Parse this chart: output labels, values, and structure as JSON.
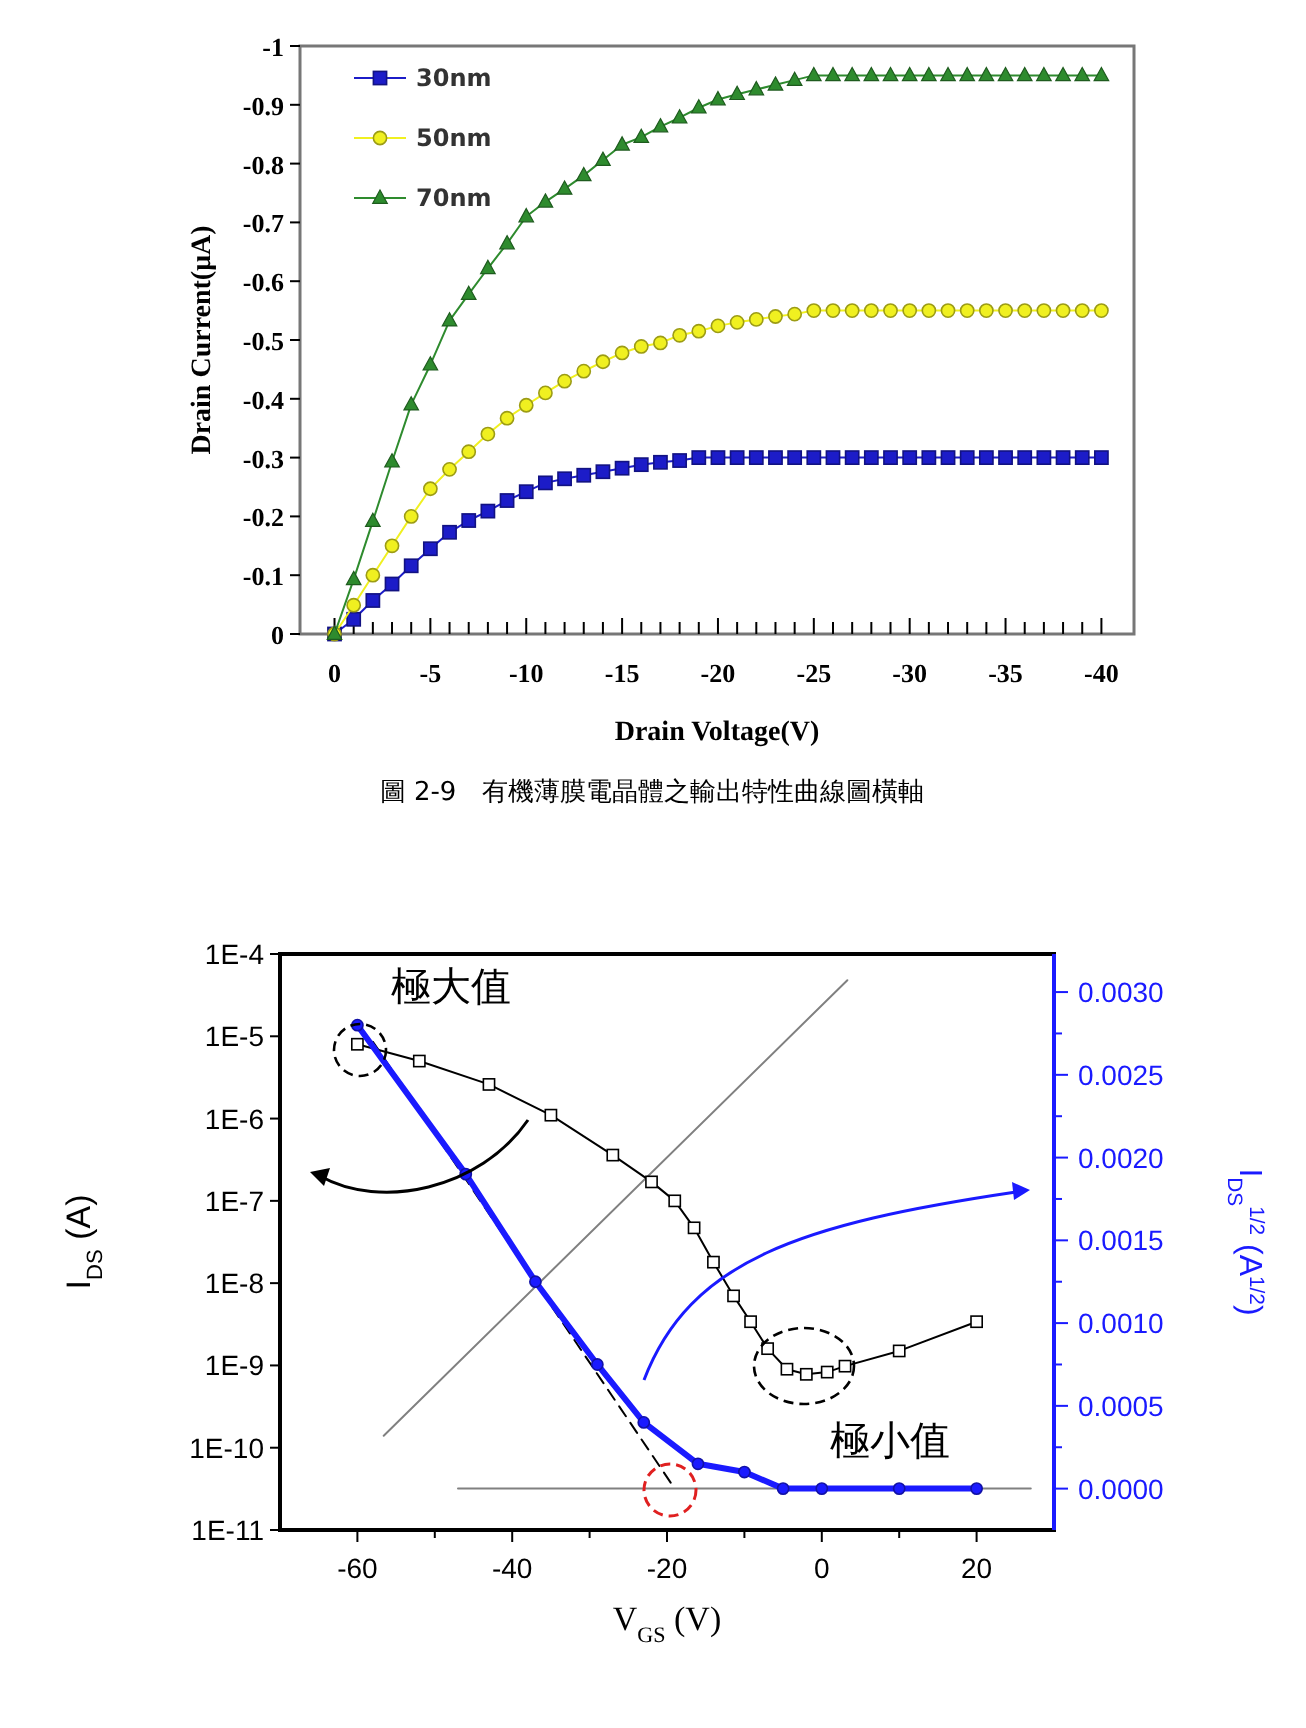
{
  "chart_data": [
    {
      "type": "line",
      "xlabel": "Drain Voltage(V)",
      "ylabel": "Drain Current(μA)",
      "legend": "top left",
      "annotations": [
        "圖 2-9　有機薄膜電晶體之輸出特性曲線圖橫軸"
      ],
      "x": [
        0,
        -1,
        -2,
        -3,
        -4,
        -5,
        -6,
        -7,
        -8,
        -9,
        -10,
        -11,
        -12,
        -13,
        -14,
        -15,
        -16,
        -17,
        -18,
        -19,
        -20,
        -21,
        -22,
        -23,
        -24,
        -25,
        -26,
        -27,
        -28,
        -29,
        -30,
        -31,
        -32,
        -33,
        -34,
        -35,
        -36,
        -37,
        -38,
        -39,
        -40
      ],
      "xlim": [
        1.8,
        -41.7
      ],
      "ylim": [
        0,
        -1
      ],
      "xticks": [
        0,
        {
          "value": -1,
          "label": null
        },
        {
          "value": -2,
          "label": null
        },
        {
          "value": -3,
          "label": null
        },
        {
          "value": -4,
          "label": null
        },
        -5,
        {
          "value": -6,
          "label": null
        },
        {
          "value": -7,
          "label": null
        },
        {
          "value": -8,
          "label": null
        },
        {
          "value": -9,
          "label": null
        },
        -10,
        {
          "value": -11,
          "label": null
        },
        {
          "value": -12,
          "label": null
        },
        {
          "value": -13,
          "label": null
        },
        {
          "value": -14,
          "label": null
        },
        -15,
        {
          "value": -16,
          "label": null
        },
        {
          "value": -17,
          "label": null
        },
        {
          "value": -18,
          "label": null
        },
        {
          "value": -19,
          "label": null
        },
        -20,
        {
          "value": -21,
          "label": null
        },
        {
          "value": -22,
          "label": null
        },
        {
          "value": -23,
          "label": null
        },
        {
          "value": -24,
          "label": null
        },
        -25,
        {
          "value": -26,
          "label": null
        },
        {
          "value": -27,
          "label": null
        },
        {
          "value": -28,
          "label": null
        },
        {
          "value": -29,
          "label": null
        },
        -30,
        {
          "value": -31,
          "label": null
        },
        {
          "value": -32,
          "label": null
        },
        {
          "value": -33,
          "label": null
        },
        {
          "value": -34,
          "label": null
        },
        -35,
        {
          "value": -36,
          "label": null
        },
        {
          "value": -37,
          "label": null
        },
        {
          "value": -38,
          "label": null
        },
        {
          "value": -39,
          "label": null
        },
        -40
      ],
      "yticks": [
        0,
        -0.1,
        -0.2,
        -0.3,
        -0.4,
        -0.5,
        -0.6,
        -0.7,
        -0.8,
        -0.9,
        -1
      ],
      "series": [
        {
          "name": "30nm",
          "color": "#1c1cc8",
          "marker": "square",
          "values": [
            0,
            -0.025,
            -0.057,
            -0.085,
            -0.116,
            -0.145,
            -0.173,
            -0.193,
            -0.209,
            -0.227,
            -0.242,
            -0.257,
            -0.264,
            -0.27,
            -0.276,
            -0.282,
            -0.288,
            -0.292,
            -0.295,
            -0.3,
            -0.3,
            -0.3,
            -0.3,
            -0.3,
            -0.3,
            -0.3,
            -0.3,
            -0.3,
            -0.3,
            -0.3,
            -0.3,
            -0.3,
            -0.3,
            -0.3,
            -0.3,
            -0.3,
            -0.3,
            -0.3,
            -0.3,
            -0.3,
            -0.3
          ]
        },
        {
          "name": "50nm",
          "color": "#f0f020",
          "marker": "circle",
          "values": [
            0,
            -0.049,
            -0.1,
            -0.15,
            -0.2,
            -0.247,
            -0.28,
            -0.31,
            -0.34,
            -0.367,
            -0.389,
            -0.41,
            -0.43,
            -0.447,
            -0.463,
            -0.478,
            -0.489,
            -0.495,
            -0.508,
            -0.515,
            -0.524,
            -0.53,
            -0.535,
            -0.54,
            -0.544,
            -0.55,
            -0.55,
            -0.55,
            -0.55,
            -0.55,
            -0.55,
            -0.55,
            -0.55,
            -0.55,
            -0.55,
            -0.55,
            -0.55,
            -0.55,
            -0.55,
            -0.55,
            -0.55
          ]
        },
        {
          "name": "70nm",
          "color": "#2e8b2e",
          "marker": "triangle",
          "values": [
            0,
            -0.093,
            -0.192,
            -0.293,
            -0.39,
            -0.458,
            -0.533,
            -0.578,
            -0.622,
            -0.664,
            -0.71,
            -0.735,
            -0.757,
            -0.78,
            -0.806,
            -0.832,
            -0.845,
            -0.863,
            -0.878,
            -0.895,
            -0.909,
            -0.918,
            -0.926,
            -0.934,
            -0.942,
            -0.95,
            -0.95,
            -0.95,
            -0.95,
            -0.95,
            -0.95,
            -0.95,
            -0.95,
            -0.95,
            -0.95,
            -0.95,
            -0.95,
            -0.95,
            -0.95,
            -0.95,
            -0.95
          ]
        }
      ]
    },
    {
      "type": "line",
      "xlabel": "V$_{GS}$ (V)",
      "ylabel": "I$_{DS}$ (A)",
      "y2label": "I$_{DS}$$^{1/2}$ (A$^{1/2}$)",
      "log": "y",
      "annotations": [
        {
          "text": "極大值",
          "x": -60,
          "y": 8e-06
        },
        {
          "text": "極小值",
          "x": -2,
          "y": 7.8e-10
        }
      ],
      "xlim": [
        -70,
        30
      ],
      "ylim": [
        1e-11,
        0.0001
      ],
      "y2lim": [
        -0.00025,
        0.00323
      ],
      "xticks": [
        -60,
        {
          "value": -50,
          "label": null
        },
        -40,
        {
          "value": -30,
          "label": null
        },
        -20,
        {
          "value": -10,
          "label": null
        },
        0,
        {
          "value": 10,
          "label": null
        },
        20
      ],
      "yticks": [
        {
          "value": 1e-11,
          "label": "1E-11"
        },
        {
          "value": 1e-10,
          "label": "1E-10"
        },
        {
          "value": 1e-09,
          "label": "1E-9"
        },
        {
          "value": 1e-08,
          "label": "1E-8"
        },
        {
          "value": 1e-07,
          "label": "1E-7"
        },
        {
          "value": 1e-06,
          "label": "1E-6"
        },
        {
          "value": 1e-05,
          "label": "1E-5"
        },
        {
          "value": 0.0001,
          "label": "1E-4"
        }
      ],
      "y2ticks": [
        {
          "value": 0,
          "label": "0.0000"
        },
        {
          "value": 0.00025,
          "label": null
        },
        {
          "value": 0.0005,
          "label": "0.0005"
        },
        {
          "value": 0.00075,
          "label": null
        },
        {
          "value": 0.001,
          "label": "0.0010"
        },
        {
          "value": 0.00125,
          "label": null
        },
        {
          "value": 0.0015,
          "label": "0.0015"
        },
        {
          "value": 0.00175,
          "label": null
        },
        {
          "value": 0.002,
          "label": "0.0020"
        },
        {
          "value": 0.00225,
          "label": null
        },
        {
          "value": 0.0025,
          "label": "0.0025"
        },
        {
          "value": 0.00275,
          "label": null
        },
        {
          "value": 0.003,
          "label": "0.0030"
        }
      ],
      "series": [
        {
          "color": "#808080",
          "marker": "none",
          "x": [
            -56.6,
            3.3
          ],
          "values": [
            1.4e-10,
            4.8e-05
          ]
        },
        {
          "color": "#808080",
          "marker": "none",
          "axis": "y2",
          "x": [
            -47,
            27
          ],
          "values": [
            0,
            0
          ]
        },
        {
          "color": "#000000",
          "marker": "square",
          "x": [
            -60,
            -52,
            -43,
            -35,
            -27,
            -22,
            -19,
            -16.5,
            -14,
            -11.4,
            -9.2,
            -7,
            -4.5,
            -2,
            0.7,
            3,
            10,
            20
          ],
          "values": [
            8e-06,
            5e-06,
            2.6e-06,
            1.1e-06,
            3.6e-07,
            1.7e-07,
            1e-07,
            4.7e-08,
            1.8e-08,
            7e-09,
            3.4e-09,
            1.6e-09,
            9e-10,
            7.8e-10,
            8.3e-10,
            9.8e-10,
            1.5e-09,
            3.4e-09
          ]
        },
        {
          "color": "#000000",
          "marker": "none",
          "line_style": "dashed",
          "axis": "y2",
          "x": [
            -58,
            -19
          ],
          "values": [
            0.0027,
            0
          ]
        },
        {
          "color": "#1a1aff",
          "marker": "circle",
          "axis": "y2",
          "x": [
            -60,
            -46,
            -37,
            -29,
            -23,
            -16,
            -10,
            -5,
            0,
            10,
            20
          ],
          "values": [
            0.0028,
            0.0019,
            0.00125,
            0.00075,
            0.0004,
            0.00015,
            0.0001,
            0,
            0,
            0,
            0
          ]
        }
      ]
    }
  ]
}
